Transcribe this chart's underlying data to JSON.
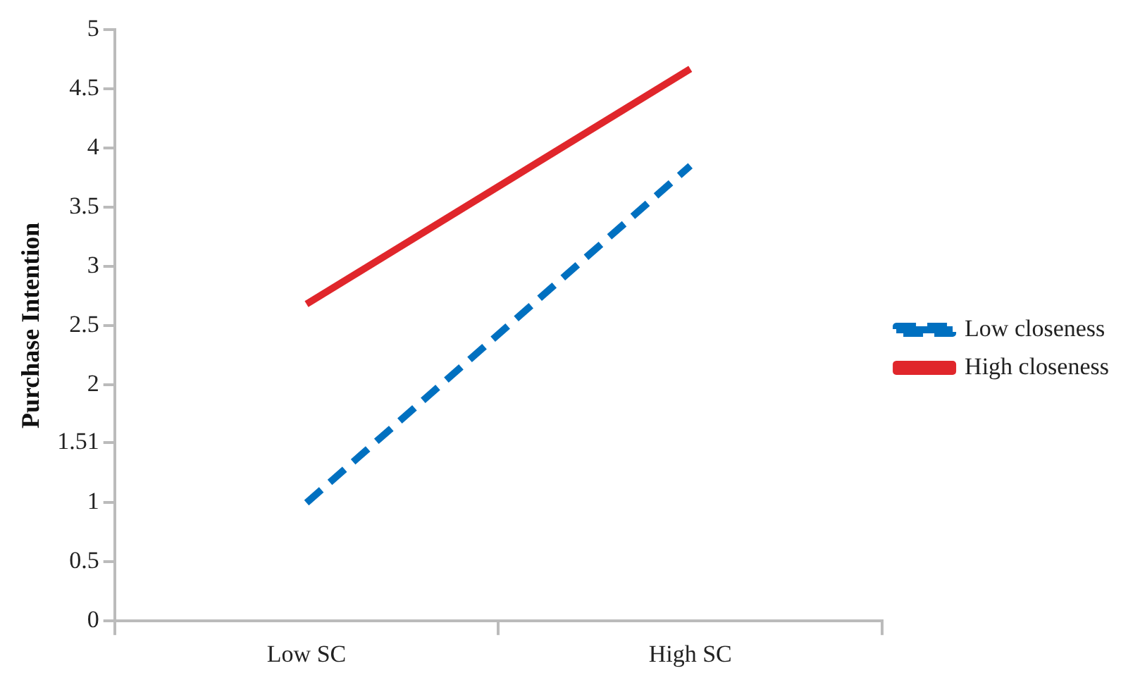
{
  "chart_data": {
    "type": "line",
    "ylabel": "Purchase Intention",
    "categories": [
      "Low SC",
      "High SC"
    ],
    "series": [
      {
        "name": "Low closeness",
        "color": "#0070c0",
        "values": [
          1.0,
          3.85
        ],
        "line_style": "dashed"
      },
      {
        "name": "High closeness",
        "color": "#e0262b",
        "values": [
          2.68,
          4.67
        ],
        "line_style": "solid"
      }
    ],
    "ylim": [
      0,
      5
    ],
    "yticks": [
      0,
      0.5,
      1,
      1.51,
      2,
      2.5,
      3,
      3.5,
      4,
      4.5,
      5
    ],
    "grid": false,
    "legend": "right",
    "marker": "none"
  }
}
